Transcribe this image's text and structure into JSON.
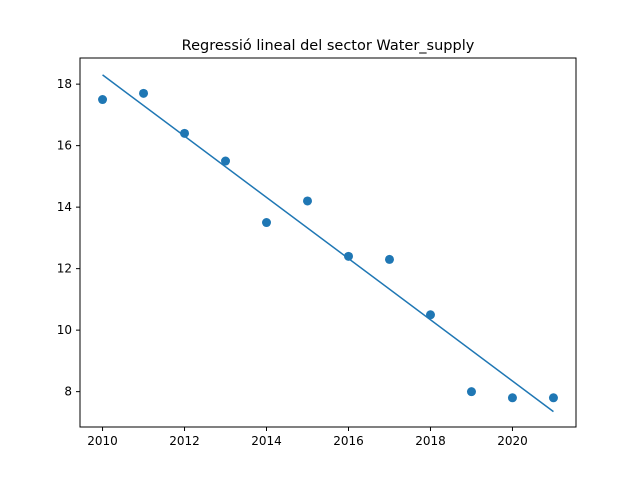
{
  "chart_data": {
    "type": "scatter",
    "title": "Regressió lineal del sector Water_supply",
    "xlabel": "",
    "ylabel": "",
    "xlim": [
      2009.45,
      2021.55
    ],
    "ylim": [
      6.85,
      18.85
    ],
    "x_ticks": [
      2010,
      2012,
      2014,
      2016,
      2018,
      2020
    ],
    "y_ticks": [
      8,
      10,
      12,
      14,
      16,
      18
    ],
    "grid": false,
    "legend": "none",
    "colors": {
      "series": "#1f77b4",
      "axes": "#000000"
    },
    "series": [
      {
        "type": "scatter",
        "x": [
          2010,
          2011,
          2012,
          2013,
          2014,
          2015,
          2016,
          2017,
          2018,
          2019,
          2020,
          2021
        ],
        "y": [
          17.5,
          17.7,
          16.4,
          15.5,
          13.5,
          14.2,
          12.4,
          12.3,
          10.5,
          8.0,
          7.8,
          7.8
        ]
      },
      {
        "type": "line",
        "x": [
          2010,
          2021
        ],
        "y": [
          18.3,
          7.35
        ]
      }
    ]
  }
}
